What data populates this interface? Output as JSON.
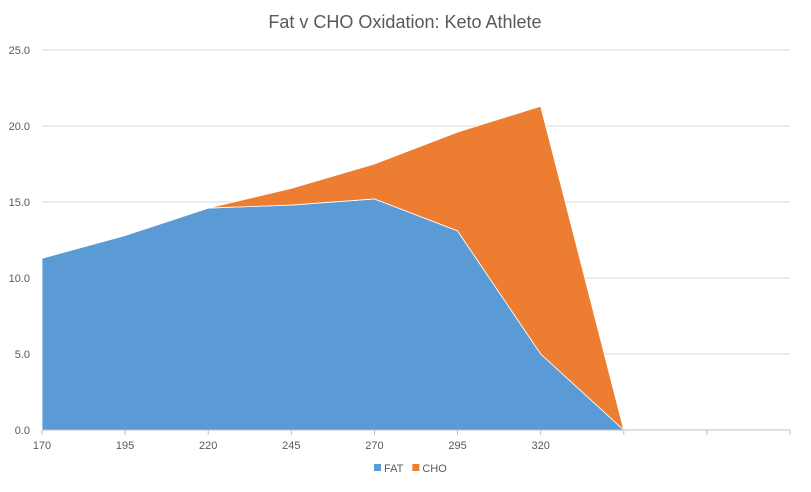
{
  "chart_data": {
    "type": "area",
    "stacked": true,
    "title": "Fat v CHO Oxidation: Keto Athlete",
    "xlabel": "",
    "ylabel": "",
    "categories": [
      "170",
      "195",
      "220",
      "245",
      "270",
      "295",
      "320",
      "",
      "",
      ""
    ],
    "series": [
      {
        "name": "FAT",
        "color": "#5b9bd5",
        "values": [
          11.3,
          12.8,
          14.6,
          14.8,
          15.2,
          13.1,
          5.0,
          0.0,
          null,
          null
        ]
      },
      {
        "name": "CHO",
        "color": "#ed7d31",
        "values": [
          0.0,
          0.0,
          0.0,
          1.1,
          2.3,
          6.5,
          16.3,
          0.0,
          null,
          null
        ]
      }
    ],
    "ylim": [
      0,
      25
    ],
    "yticks": [
      "0.0",
      "5.0",
      "10.0",
      "15.0",
      "20.0",
      "25.0"
    ],
    "grid": true,
    "legend_position": "bottom"
  }
}
